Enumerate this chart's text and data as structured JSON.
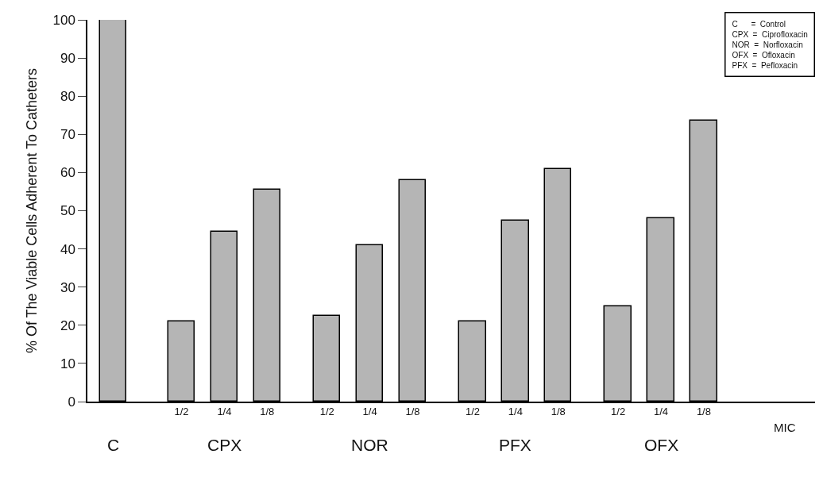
{
  "chart_data": {
    "type": "bar",
    "categories": [
      null,
      "1/2",
      "1/4",
      "1/8",
      "1/2",
      "1/4",
      "1/8",
      "1/2",
      "1/4",
      "1/8",
      "1/2",
      "1/4",
      "1/8"
    ],
    "values": [
      100,
      21,
      44.5,
      55.5,
      22.5,
      41,
      58,
      21,
      47.5,
      61,
      25,
      48,
      73.5
    ],
    "color": "#b5b5b5",
    "ylabel": "% Of The Viable Cells Adherent To Catheters",
    "xlabel": "MIC",
    "ylim": [
      0,
      100
    ],
    "yticks": [
      0,
      10,
      20,
      30,
      40,
      50,
      60,
      70,
      80,
      90,
      100
    ],
    "annotations": [
      "C",
      "CPX",
      "NOR",
      "PFX",
      "OFX",
      "C      =  Control",
      "CPX  =  Ciprofloxacin",
      "NOR  =  Norfloxacin",
      "OFX  =  Ofloxacin",
      "PFX  =  Pefloxacin"
    ],
    "legend": false
  }
}
